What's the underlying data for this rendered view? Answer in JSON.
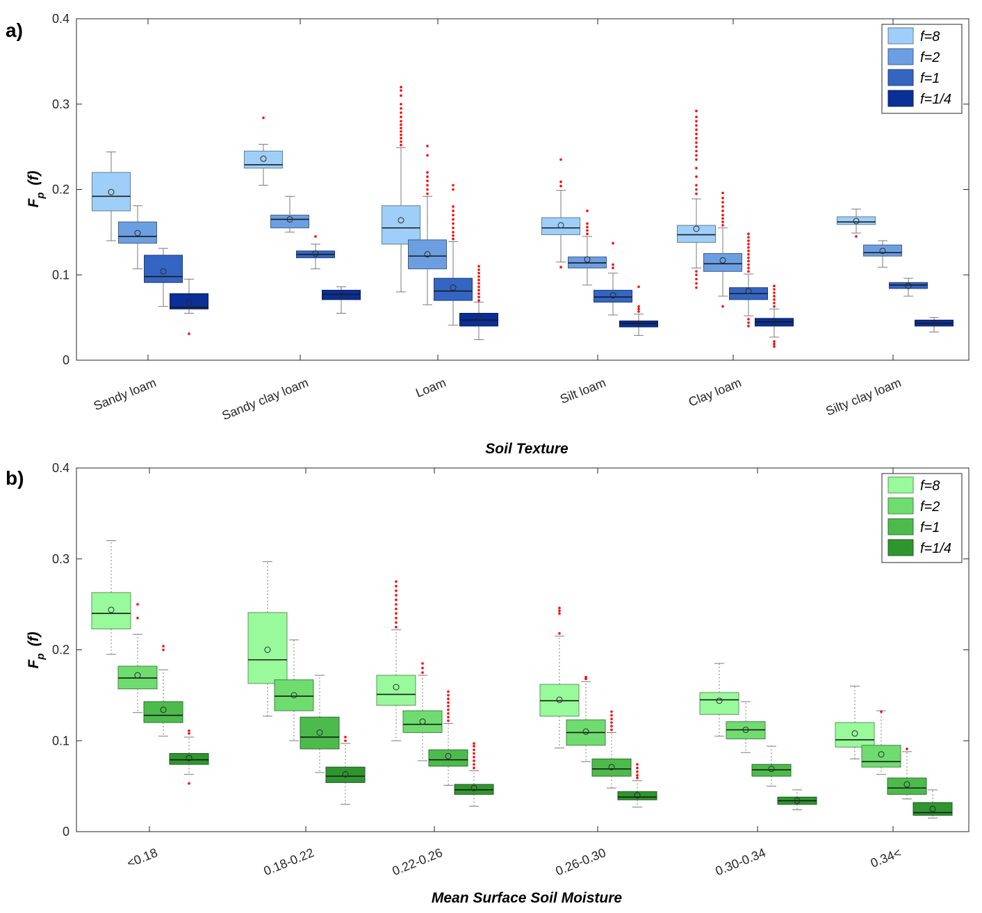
{
  "chart_data": [
    {
      "type": "box",
      "panel_label": "a)",
      "xlabel": "Soil Texture",
      "ylabel": {
        "main": "F",
        "sub": "p",
        "arg": "(f)"
      },
      "ylim": [
        0,
        0.4
      ],
      "yticks": [
        0,
        0.1,
        0.2,
        0.3,
        0.4
      ],
      "ytick_labels": [
        "0",
        "0.1",
        "0.2",
        "0.3",
        "0.4"
      ],
      "categories": [
        "Sandy loam",
        "Sandy clay loam",
        "Loam",
        "Silt loam",
        "Clay loam",
        "Silty clay loam"
      ],
      "whisker_style": "solid",
      "legend": {
        "position": "top-right"
      },
      "series": [
        {
          "name": "f=8",
          "color": "#9fcff8",
          "boxes": [
            {
              "wlo": 0.14,
              "q1": 0.175,
              "med": 0.192,
              "q3": 0.22,
              "whi": 0.244,
              "mean": 0.197,
              "outliers": []
            },
            {
              "wlo": 0.205,
              "q1": 0.225,
              "med": 0.229,
              "q3": 0.245,
              "whi": 0.253,
              "mean": 0.236,
              "outliers": [
                0.284
              ]
            },
            {
              "wlo": 0.08,
              "q1": 0.136,
              "med": 0.155,
              "q3": 0.181,
              "whi": 0.249,
              "mean": 0.164,
              "outliers": [
                0.252,
                0.256,
                0.26,
                0.264,
                0.268,
                0.272,
                0.276,
                0.28,
                0.285,
                0.29,
                0.295,
                0.3,
                0.31,
                0.316,
                0.32
              ]
            },
            {
              "wlo": 0.115,
              "q1": 0.147,
              "med": 0.155,
              "q3": 0.167,
              "whi": 0.199,
              "mean": 0.158,
              "outliers": [
                0.109,
                0.204,
                0.209,
                0.235
              ]
            },
            {
              "wlo": 0.108,
              "q1": 0.138,
              "med": 0.147,
              "q3": 0.158,
              "whi": 0.189,
              "mean": 0.154,
              "outliers": [
                0.085,
                0.09,
                0.095,
                0.1,
                0.104,
                0.195,
                0.2,
                0.205,
                0.215,
                0.225,
                0.235,
                0.24,
                0.245,
                0.25,
                0.255,
                0.26,
                0.265,
                0.27,
                0.275,
                0.28,
                0.285,
                0.292
              ]
            },
            {
              "wlo": 0.149,
              "q1": 0.159,
              "med": 0.162,
              "q3": 0.168,
              "whi": 0.177,
              "mean": 0.163,
              "outliers": [
                0.145
              ]
            }
          ]
        },
        {
          "name": "f=2",
          "color": "#6c9fe1",
          "boxes": [
            {
              "wlo": 0.107,
              "q1": 0.137,
              "med": 0.145,
              "q3": 0.162,
              "whi": 0.181,
              "mean": 0.149,
              "outliers": []
            },
            {
              "wlo": 0.15,
              "q1": 0.155,
              "med": 0.165,
              "q3": 0.17,
              "whi": 0.192,
              "mean": 0.165,
              "outliers": []
            },
            {
              "wlo": 0.065,
              "q1": 0.107,
              "med": 0.122,
              "q3": 0.141,
              "whi": 0.192,
              "mean": 0.124,
              "outliers": [
                0.195,
                0.2,
                0.205,
                0.21,
                0.215,
                0.22,
                0.24,
                0.251
              ]
            },
            {
              "wlo": 0.088,
              "q1": 0.108,
              "med": 0.114,
              "q3": 0.121,
              "whi": 0.145,
              "mean": 0.118,
              "outliers": [
                0.148,
                0.152,
                0.156,
                0.16,
                0.175
              ]
            },
            {
              "wlo": 0.075,
              "q1": 0.104,
              "med": 0.113,
              "q3": 0.125,
              "whi": 0.155,
              "mean": 0.117,
              "outliers": [
                0.063,
                0.158,
                0.162,
                0.166,
                0.17,
                0.175,
                0.18,
                0.185,
                0.19,
                0.196
              ]
            },
            {
              "wlo": 0.109,
              "q1": 0.122,
              "med": 0.126,
              "q3": 0.135,
              "whi": 0.14,
              "mean": 0.128,
              "outliers": []
            }
          ]
        },
        {
          "name": "f=1",
          "color": "#3465c3",
          "boxes": [
            {
              "wlo": 0.063,
              "q1": 0.091,
              "med": 0.098,
              "q3": 0.123,
              "whi": 0.131,
              "mean": 0.104,
              "outliers": []
            },
            {
              "wlo": 0.107,
              "q1": 0.12,
              "med": 0.124,
              "q3": 0.128,
              "whi": 0.136,
              "mean": 0.125,
              "outliers": [
                0.145
              ]
            },
            {
              "wlo": 0.041,
              "q1": 0.07,
              "med": 0.081,
              "q3": 0.096,
              "whi": 0.139,
              "mean": 0.085,
              "outliers": [
                0.142,
                0.146,
                0.15,
                0.155,
                0.16,
                0.165,
                0.17,
                0.175,
                0.18,
                0.2,
                0.205
              ]
            },
            {
              "wlo": 0.053,
              "q1": 0.068,
              "med": 0.074,
              "q3": 0.082,
              "whi": 0.102,
              "mean": 0.076,
              "outliers": [
                0.108,
                0.112,
                0.137
              ]
            },
            {
              "wlo": 0.052,
              "q1": 0.071,
              "med": 0.078,
              "q3": 0.085,
              "whi": 0.101,
              "mean": 0.081,
              "outliers": [
                0.04,
                0.044,
                0.048,
                0.104,
                0.108,
                0.112,
                0.116,
                0.12,
                0.124,
                0.128,
                0.132,
                0.136,
                0.14,
                0.144,
                0.148
              ]
            },
            {
              "wlo": 0.075,
              "q1": 0.084,
              "med": 0.088,
              "q3": 0.091,
              "whi": 0.096,
              "mean": 0.087,
              "outliers": []
            }
          ]
        },
        {
          "name": "f=1/4",
          "color": "#0a2f96",
          "boxes": [
            {
              "wlo": 0.055,
              "q1": 0.06,
              "med": 0.062,
              "q3": 0.078,
              "whi": 0.095,
              "mean": 0.067,
              "outliers": [
                0.031
              ]
            },
            {
              "wlo": 0.055,
              "q1": 0.071,
              "med": 0.077,
              "q3": 0.082,
              "whi": 0.086,
              "mean": 0.076,
              "outliers": []
            },
            {
              "wlo": 0.024,
              "q1": 0.04,
              "med": 0.047,
              "q3": 0.055,
              "whi": 0.068,
              "mean": 0.049,
              "outliers": [
                0.07,
                0.074,
                0.078,
                0.082,
                0.086,
                0.09,
                0.094,
                0.098,
                0.102,
                0.106,
                0.11
              ]
            },
            {
              "wlo": 0.029,
              "q1": 0.039,
              "med": 0.043,
              "q3": 0.046,
              "whi": 0.054,
              "mean": 0.043,
              "outliers": [
                0.057,
                0.06,
                0.063,
                0.086
              ]
            },
            {
              "wlo": 0.027,
              "q1": 0.04,
              "med": 0.045,
              "q3": 0.049,
              "whi": 0.06,
              "mean": 0.045,
              "outliers": [
                0.016,
                0.019,
                0.022,
                0.063,
                0.067,
                0.071,
                0.075,
                0.079,
                0.083,
                0.087
              ]
            },
            {
              "wlo": 0.033,
              "q1": 0.04,
              "med": 0.043,
              "q3": 0.047,
              "whi": 0.05,
              "mean": 0.043,
              "outliers": []
            }
          ]
        }
      ]
    },
    {
      "type": "box",
      "panel_label": "b)",
      "xlabel": "Mean Surface Soil Moisture",
      "ylabel": {
        "main": "F",
        "sub": "p",
        "arg": "(f)"
      },
      "ylim": [
        0,
        0.4
      ],
      "yticks": [
        0,
        0.1,
        0.2,
        0.3,
        0.4
      ],
      "ytick_labels": [
        "0",
        "0.1",
        "0.2",
        "0.3",
        "0.4"
      ],
      "categories": [
        "<0.18",
        "0.18-0.22",
        "0.22-0.26",
        "0.26-0.30",
        "0.30-0.34",
        "0.34<"
      ],
      "whisker_style": "dotted",
      "legend": {
        "position": "top-right"
      },
      "series": [
        {
          "name": "f=8",
          "color": "#98fa9a",
          "boxes": [
            {
              "wlo": 0.195,
              "q1": 0.223,
              "med": 0.24,
              "q3": 0.263,
              "whi": 0.32,
              "mean": 0.244,
              "outliers": []
            },
            {
              "wlo": 0.127,
              "q1": 0.163,
              "med": 0.189,
              "q3": 0.241,
              "whi": 0.297,
              "mean": 0.2,
              "outliers": []
            },
            {
              "wlo": 0.1,
              "q1": 0.139,
              "med": 0.151,
              "q3": 0.172,
              "whi": 0.222,
              "mean": 0.159,
              "outliers": [
                0.225,
                0.23,
                0.235,
                0.24,
                0.245,
                0.25,
                0.255,
                0.26,
                0.265,
                0.27,
                0.275
              ]
            },
            {
              "wlo": 0.092,
              "q1": 0.127,
              "med": 0.144,
              "q3": 0.162,
              "whi": 0.215,
              "mean": 0.145,
              "outliers": [
                0.218,
                0.24,
                0.243,
                0.246
              ]
            },
            {
              "wlo": 0.105,
              "q1": 0.129,
              "med": 0.145,
              "q3": 0.153,
              "whi": 0.185,
              "mean": 0.144,
              "outliers": []
            },
            {
              "wlo": 0.08,
              "q1": 0.093,
              "med": 0.101,
              "q3": 0.12,
              "whi": 0.16,
              "mean": 0.108,
              "outliers": []
            }
          ]
        },
        {
          "name": "f=2",
          "color": "#6fdc6f",
          "boxes": [
            {
              "wlo": 0.131,
              "q1": 0.157,
              "med": 0.169,
              "q3": 0.182,
              "whi": 0.217,
              "mean": 0.172,
              "outliers": [
                0.235,
                0.25
              ]
            },
            {
              "wlo": 0.1,
              "q1": 0.133,
              "med": 0.149,
              "q3": 0.167,
              "whi": 0.211,
              "mean": 0.15,
              "outliers": []
            },
            {
              "wlo": 0.078,
              "q1": 0.109,
              "med": 0.118,
              "q3": 0.133,
              "whi": 0.172,
              "mean": 0.121,
              "outliers": [
                0.175,
                0.18,
                0.185
              ]
            },
            {
              "wlo": 0.077,
              "q1": 0.095,
              "med": 0.109,
              "q3": 0.123,
              "whi": 0.165,
              "mean": 0.11,
              "outliers": [
                0.168,
                0.17
              ]
            },
            {
              "wlo": 0.087,
              "q1": 0.102,
              "med": 0.112,
              "q3": 0.121,
              "whi": 0.143,
              "mean": 0.112,
              "outliers": []
            },
            {
              "wlo": 0.063,
              "q1": 0.071,
              "med": 0.077,
              "q3": 0.095,
              "whi": 0.133,
              "mean": 0.085,
              "outliers": [
                0.132
              ]
            }
          ]
        },
        {
          "name": "f=1",
          "color": "#4cbb4c",
          "boxes": [
            {
              "wlo": 0.105,
              "q1": 0.12,
              "med": 0.128,
              "q3": 0.143,
              "whi": 0.178,
              "mean": 0.134,
              "outliers": [
                0.2,
                0.204
              ]
            },
            {
              "wlo": 0.065,
              "q1": 0.091,
              "med": 0.104,
              "q3": 0.126,
              "whi": 0.172,
              "mean": 0.109,
              "outliers": []
            },
            {
              "wlo": 0.051,
              "q1": 0.072,
              "med": 0.079,
              "q3": 0.09,
              "whi": 0.119,
              "mean": 0.083,
              "outliers": [
                0.122,
                0.126,
                0.13,
                0.134,
                0.138,
                0.142,
                0.146,
                0.15,
                0.154
              ]
            },
            {
              "wlo": 0.048,
              "q1": 0.061,
              "med": 0.069,
              "q3": 0.08,
              "whi": 0.109,
              "mean": 0.071,
              "outliers": [
                0.112,
                0.116,
                0.12,
                0.124,
                0.128,
                0.132
              ]
            },
            {
              "wlo": 0.05,
              "q1": 0.061,
              "med": 0.068,
              "q3": 0.074,
              "whi": 0.094,
              "mean": 0.069,
              "outliers": []
            },
            {
              "wlo": 0.036,
              "q1": 0.041,
              "med": 0.048,
              "q3": 0.059,
              "whi": 0.088,
              "mean": 0.052,
              "outliers": [
                0.091
              ]
            }
          ]
        },
        {
          "name": "f=1/4",
          "color": "#2f962f",
          "boxes": [
            {
              "wlo": 0.063,
              "q1": 0.074,
              "med": 0.079,
              "q3": 0.086,
              "whi": 0.104,
              "mean": 0.081,
              "outliers": [
                0.053,
                0.108,
                0.111
              ]
            },
            {
              "wlo": 0.03,
              "q1": 0.054,
              "med": 0.061,
              "q3": 0.071,
              "whi": 0.097,
              "mean": 0.063,
              "outliers": [
                0.1,
                0.104
              ]
            },
            {
              "wlo": 0.028,
              "q1": 0.041,
              "med": 0.046,
              "q3": 0.052,
              "whi": 0.067,
              "mean": 0.048,
              "outliers": [
                0.07,
                0.074,
                0.078,
                0.082,
                0.086,
                0.09,
                0.094,
                0.097
              ]
            },
            {
              "wlo": 0.027,
              "q1": 0.035,
              "med": 0.038,
              "q3": 0.044,
              "whi": 0.056,
              "mean": 0.04,
              "outliers": [
                0.059,
                0.062,
                0.066,
                0.07,
                0.074
              ]
            },
            {
              "wlo": 0.024,
              "q1": 0.03,
              "med": 0.034,
              "q3": 0.038,
              "whi": 0.046,
              "mean": 0.034,
              "outliers": []
            },
            {
              "wlo": 0.015,
              "q1": 0.018,
              "med": 0.021,
              "q3": 0.032,
              "whi": 0.046,
              "mean": 0.025,
              "outliers": []
            }
          ]
        }
      ]
    }
  ]
}
